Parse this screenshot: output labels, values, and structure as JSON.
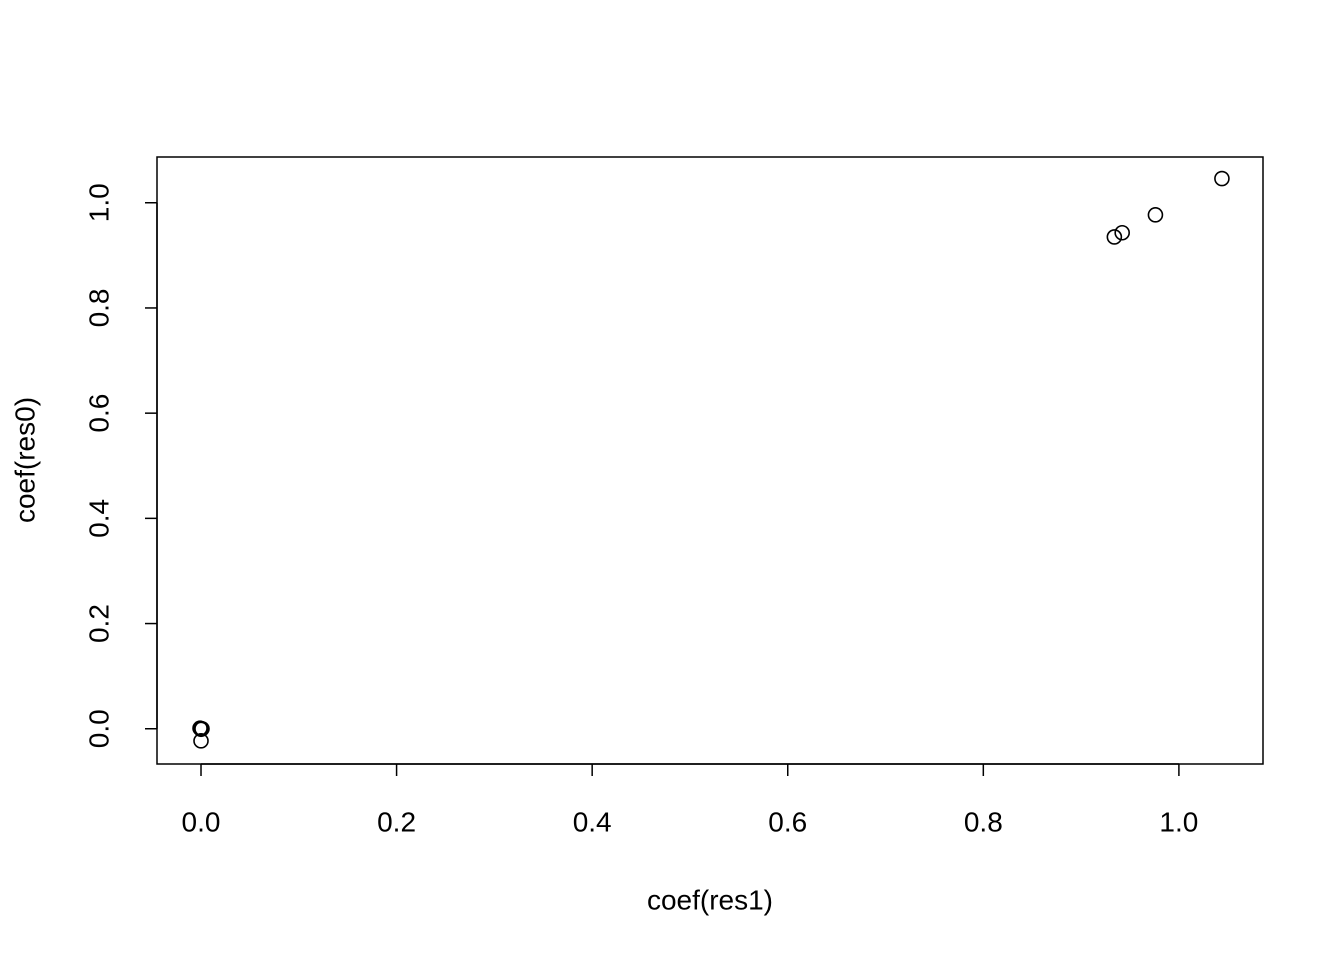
{
  "chart_data": {
    "type": "scatter",
    "xlabel": "coef(res1)",
    "ylabel": "coef(res0)",
    "x": [
      0,
      0,
      0,
      -0.001,
      0.001,
      0,
      0,
      0.934,
      0.942,
      0.976,
      1.044
    ],
    "values": [
      0,
      0,
      0,
      0.001,
      0,
      -0.001,
      -0.023,
      0.935,
      0.943,
      0.977,
      1.046
    ],
    "color": "#000000",
    "xlim": [
      -0.045,
      1.086
    ],
    "ylim": [
      -0.067,
      1.087
    ],
    "xticks": [
      {
        "value": 0,
        "label": "0.0"
      },
      0.2,
      0.4,
      0.6,
      0.8,
      {
        "value": 1,
        "label": "1.0"
      }
    ],
    "yticks": [
      {
        "value": 0,
        "label": "0.0"
      },
      0.2,
      0.4,
      0.6,
      0.8,
      {
        "value": 1,
        "label": "1.0"
      }
    ],
    "grid": false
  }
}
